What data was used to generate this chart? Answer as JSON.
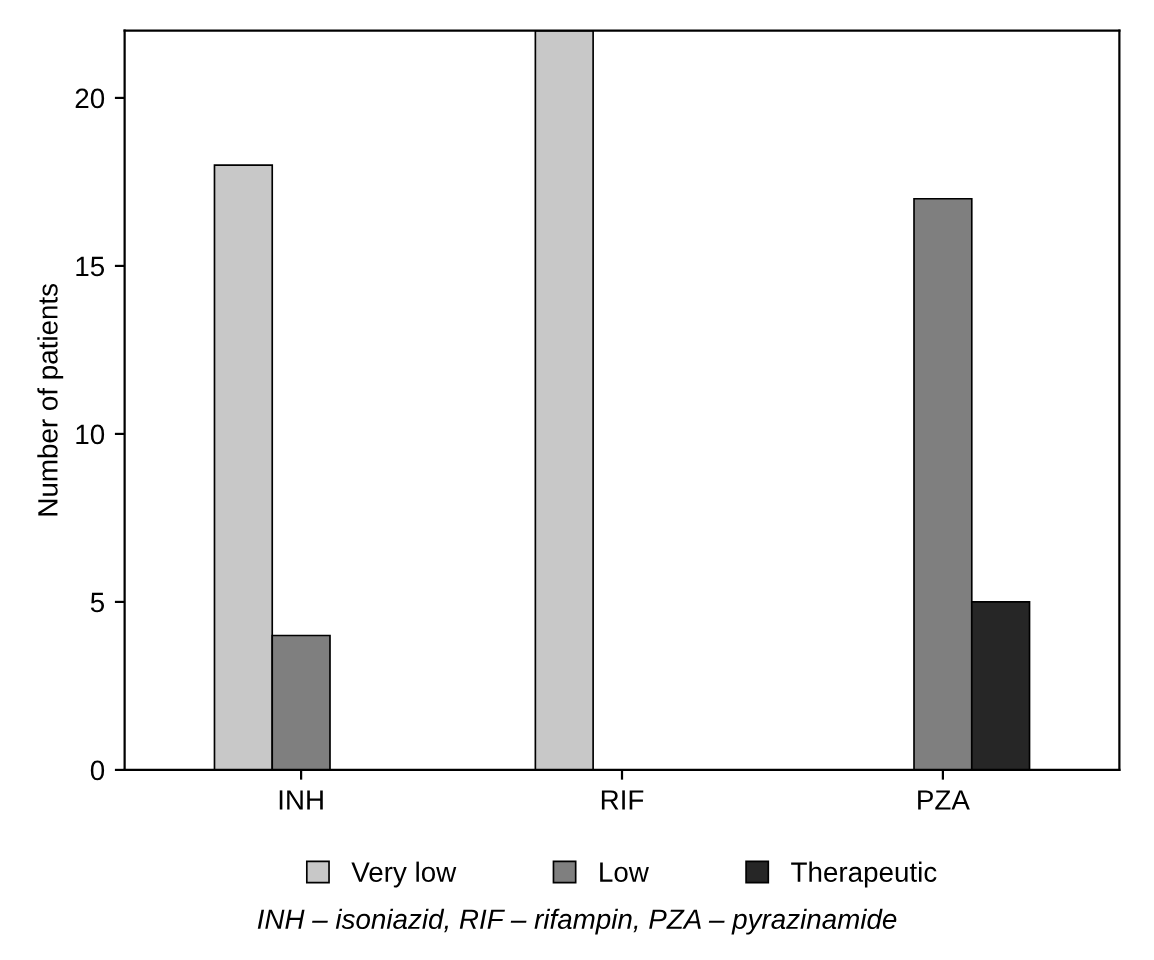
{
  "chart_data": {
    "type": "bar",
    "ylabel": "Number of patients",
    "categories": [
      "INH",
      "RIF",
      "PZA"
    ],
    "series": [
      {
        "name": "Very low",
        "color": "#c8c8c8",
        "values": [
          18,
          22,
          null
        ]
      },
      {
        "name": "Low",
        "color": "#7f7f7f",
        "values": [
          4,
          null,
          17
        ]
      },
      {
        "name": "Therapeutic",
        "color": "#262626",
        "values": [
          null,
          null,
          5
        ]
      }
    ],
    "ylim": [
      0,
      22
    ],
    "yticks": [
      0,
      5,
      10,
      15,
      20
    ],
    "grid": false,
    "legend": "bottom",
    "annotations": [
      "INH – isoniazid, RIF – rifampin, PZA – pyrazinamide"
    ]
  }
}
